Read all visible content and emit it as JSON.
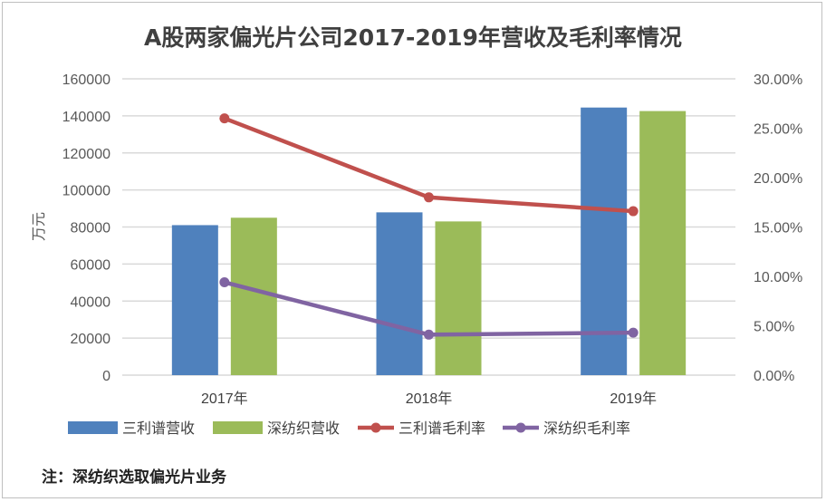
{
  "chart_data": {
    "type": "bar",
    "title": "A股两家偏光片公司2017-2019年营收及毛利率情况",
    "categories": [
      "2017年",
      "2018年",
      "2019年"
    ],
    "ylabel": "万元",
    "ylim": [
      0,
      160000
    ],
    "yticks": [
      "0",
      "20000",
      "40000",
      "60000",
      "80000",
      "100000",
      "120000",
      "140000",
      "160000"
    ],
    "y2lim": [
      0,
      30
    ],
    "y2ticks": [
      "0.00%",
      "5.00%",
      "10.00%",
      "15.00%",
      "20.00%",
      "25.00%",
      "30.00%"
    ],
    "grid": true,
    "legend_position": "bottom",
    "series": [
      {
        "name": "三利谱营收",
        "type": "bar",
        "axis": "left",
        "color": "#4f81bd",
        "values": [
          81000,
          87900,
          144500
        ]
      },
      {
        "name": "深纺织营收",
        "type": "bar",
        "axis": "left",
        "color": "#9bbb59",
        "values": [
          85000,
          83000,
          142600
        ]
      },
      {
        "name": "三利谱毛利率",
        "type": "line",
        "axis": "right",
        "color": "#c0504d",
        "values": [
          26.0,
          18.0,
          16.6
        ]
      },
      {
        "name": "深纺织毛利率",
        "type": "line",
        "axis": "right",
        "color": "#8064a2",
        "values": [
          9.4,
          4.1,
          4.3
        ]
      }
    ]
  },
  "note": "注：深纺织选取偏光片业务"
}
